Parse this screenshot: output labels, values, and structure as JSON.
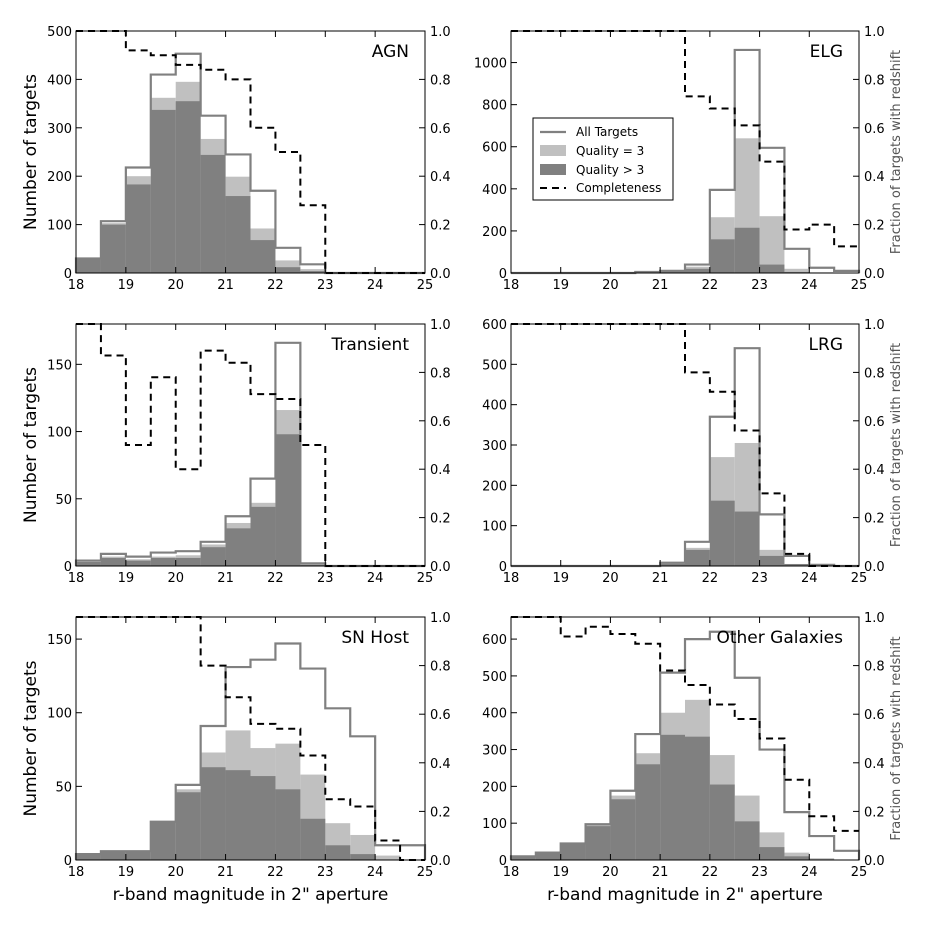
{
  "colors": {
    "all_targets": "#808080",
    "quality3": "#c0c0c0",
    "quality_gt3": "#808080",
    "completeness": "#000000"
  },
  "legend": {
    "all_targets": "All Targets",
    "quality3": "Quality = 3",
    "quality_gt3": "Quality > 3",
    "completeness": "Completeness"
  },
  "chart_data": [
    {
      "type": "bar",
      "title": "AGN",
      "xlabel": "",
      "ylabel": "Number of targets",
      "y2label": "",
      "xlim": [
        18,
        25
      ],
      "ylim": [
        0,
        500
      ],
      "yticks": [
        0,
        100,
        200,
        300,
        400,
        500
      ],
      "bin_edges": [
        18,
        18.5,
        19,
        19.5,
        20,
        20.5,
        21,
        21.5,
        22,
        22.5,
        23,
        23.5,
        24,
        24.5,
        25
      ],
      "all_targets": [
        30,
        107,
        218,
        410,
        453,
        325,
        245,
        170,
        52,
        18,
        0,
        0,
        0,
        0
      ],
      "quality3": [
        30,
        103,
        200,
        362,
        395,
        277,
        199,
        92,
        26,
        8,
        0,
        0,
        0,
        0
      ],
      "quality_gt3": [
        30,
        100,
        183,
        337,
        355,
        244,
        159,
        68,
        12,
        4,
        0,
        0,
        0,
        0
      ],
      "completeness": [
        1.0,
        1.0,
        0.92,
        0.9,
        0.86,
        0.84,
        0.8,
        0.6,
        0.5,
        0.28,
        0.0,
        0.0,
        0.0,
        0.0
      ]
    },
    {
      "type": "bar",
      "title": "ELG",
      "xlabel": "",
      "ylabel": "",
      "y2label": "Fraction of targets with redshift",
      "xlim": [
        18,
        25
      ],
      "ylim": [
        0,
        1150
      ],
      "yticks": [
        0,
        200,
        400,
        600,
        800,
        1000
      ],
      "bin_edges": [
        18,
        18.5,
        19,
        19.5,
        20,
        20.5,
        21,
        21.5,
        22,
        22.5,
        23,
        23.5,
        24,
        24.5,
        25
      ],
      "all_targets": [
        0,
        0,
        0,
        0,
        0,
        5,
        10,
        40,
        395,
        1060,
        595,
        115,
        25,
        10
      ],
      "quality3": [
        0,
        0,
        0,
        0,
        0,
        3,
        7,
        30,
        265,
        640,
        270,
        20,
        3,
        2
      ],
      "quality_gt3": [
        0,
        0,
        0,
        0,
        0,
        2,
        5,
        20,
        160,
        215,
        40,
        5,
        1,
        1
      ],
      "completeness": [
        1.0,
        1.0,
        1.0,
        1.0,
        1.0,
        1.0,
        1.0,
        0.73,
        0.68,
        0.61,
        0.46,
        0.18,
        0.2,
        0.11
      ]
    },
    {
      "type": "bar",
      "title": "Transient",
      "xlabel": "",
      "ylabel": "Number of targets",
      "y2label": "",
      "xlim": [
        18,
        25
      ],
      "ylim": [
        0,
        180
      ],
      "yticks": [
        0,
        50,
        100,
        150
      ],
      "bin_edges": [
        18,
        18.5,
        19,
        19.5,
        20,
        20.5,
        21,
        21.5,
        22,
        22.5,
        23,
        23.5,
        24,
        24.5,
        25
      ],
      "all_targets": [
        4,
        9,
        7,
        10,
        11,
        18,
        37,
        65,
        166,
        2,
        0,
        0,
        0,
        0
      ],
      "quality3": [
        3,
        7,
        5,
        7,
        8,
        16,
        32,
        47,
        116,
        1,
        0,
        0,
        0,
        0
      ],
      "quality_gt3": [
        3,
        6,
        4,
        6,
        6,
        14,
        28,
        44,
        98,
        1,
        0,
        0,
        0,
        0
      ],
      "completeness": [
        1.0,
        0.87,
        0.5,
        0.78,
        0.4,
        0.89,
        0.84,
        0.71,
        0.69,
        0.5,
        0.0,
        0.0,
        0.0,
        0.0
      ]
    },
    {
      "type": "bar",
      "title": "LRG",
      "xlabel": "",
      "ylabel": "",
      "y2label": "Fraction of targets with redshift",
      "xlim": [
        18,
        25
      ],
      "ylim": [
        0,
        600
      ],
      "yticks": [
        0,
        100,
        200,
        300,
        400,
        500,
        600
      ],
      "bin_edges": [
        18,
        18.5,
        19,
        19.5,
        20,
        20.5,
        21,
        21.5,
        22,
        22.5,
        23,
        23.5,
        24,
        24.5,
        25
      ],
      "all_targets": [
        0,
        0,
        0,
        0,
        0,
        0,
        8,
        60,
        370,
        540,
        128,
        25,
        3,
        0
      ],
      "quality3": [
        0,
        0,
        0,
        0,
        0,
        0,
        6,
        45,
        270,
        305,
        40,
        5,
        1,
        0
      ],
      "quality_gt3": [
        0,
        0,
        0,
        0,
        0,
        0,
        5,
        40,
        162,
        135,
        25,
        5,
        1,
        0
      ],
      "completeness": [
        1.0,
        1.0,
        1.0,
        1.0,
        1.0,
        1.0,
        1.0,
        0.8,
        0.72,
        0.56,
        0.3,
        0.05,
        0.0,
        0.0
      ]
    },
    {
      "type": "bar",
      "title": "SN Host",
      "xlabel": "r-band magnitude in 2\" aperture",
      "ylabel": "Number of targets",
      "y2label": "",
      "xlim": [
        18,
        25
      ],
      "ylim": [
        0,
        165
      ],
      "yticks": [
        0,
        50,
        100,
        150
      ],
      "bin_edges": [
        18,
        18.5,
        19,
        19.5,
        20,
        20.5,
        21,
        21.5,
        22,
        22.5,
        23,
        23.5,
        24,
        24.5,
        25
      ],
      "all_targets": [
        4,
        6,
        6,
        26,
        51,
        91,
        131,
        136,
        147,
        130,
        103,
        84,
        10,
        10
      ],
      "quality3": [
        4,
        6,
        6,
        26,
        48,
        73,
        88,
        76,
        79,
        58,
        25,
        17,
        3,
        0
      ],
      "quality_gt3": [
        4,
        6,
        6,
        26,
        46,
        63,
        61,
        57,
        48,
        28,
        10,
        4,
        0,
        0
      ],
      "completeness": [
        1.0,
        1.0,
        1.0,
        1.0,
        1.0,
        0.8,
        0.67,
        0.56,
        0.54,
        0.43,
        0.25,
        0.22,
        0.08,
        0.0
      ]
    },
    {
      "type": "bar",
      "title": "Other Galaxies",
      "xlabel": "r-band magnitude in 2\" aperture",
      "ylabel": "",
      "y2label": "Fraction of targets with redshift",
      "xlim": [
        18,
        25
      ],
      "ylim": [
        0,
        660
      ],
      "yticks": [
        0,
        100,
        200,
        300,
        400,
        500,
        600
      ],
      "bin_edges": [
        18,
        18.5,
        19,
        19.5,
        20,
        20.5,
        21,
        21.5,
        22,
        22.5,
        23,
        23.5,
        24,
        24.5,
        25
      ],
      "all_targets": [
        10,
        20,
        45,
        97,
        188,
        342,
        509,
        600,
        620,
        495,
        300,
        130,
        65,
        25
      ],
      "quality3": [
        10,
        20,
        45,
        95,
        175,
        290,
        400,
        435,
        285,
        175,
        75,
        20,
        5,
        0
      ],
      "quality_gt3": [
        10,
        20,
        43,
        92,
        165,
        260,
        340,
        335,
        205,
        105,
        35,
        10,
        2,
        0
      ],
      "completeness": [
        1.0,
        1.0,
        0.92,
        0.96,
        0.93,
        0.89,
        0.78,
        0.72,
        0.64,
        0.58,
        0.5,
        0.33,
        0.18,
        0.12
      ]
    }
  ]
}
